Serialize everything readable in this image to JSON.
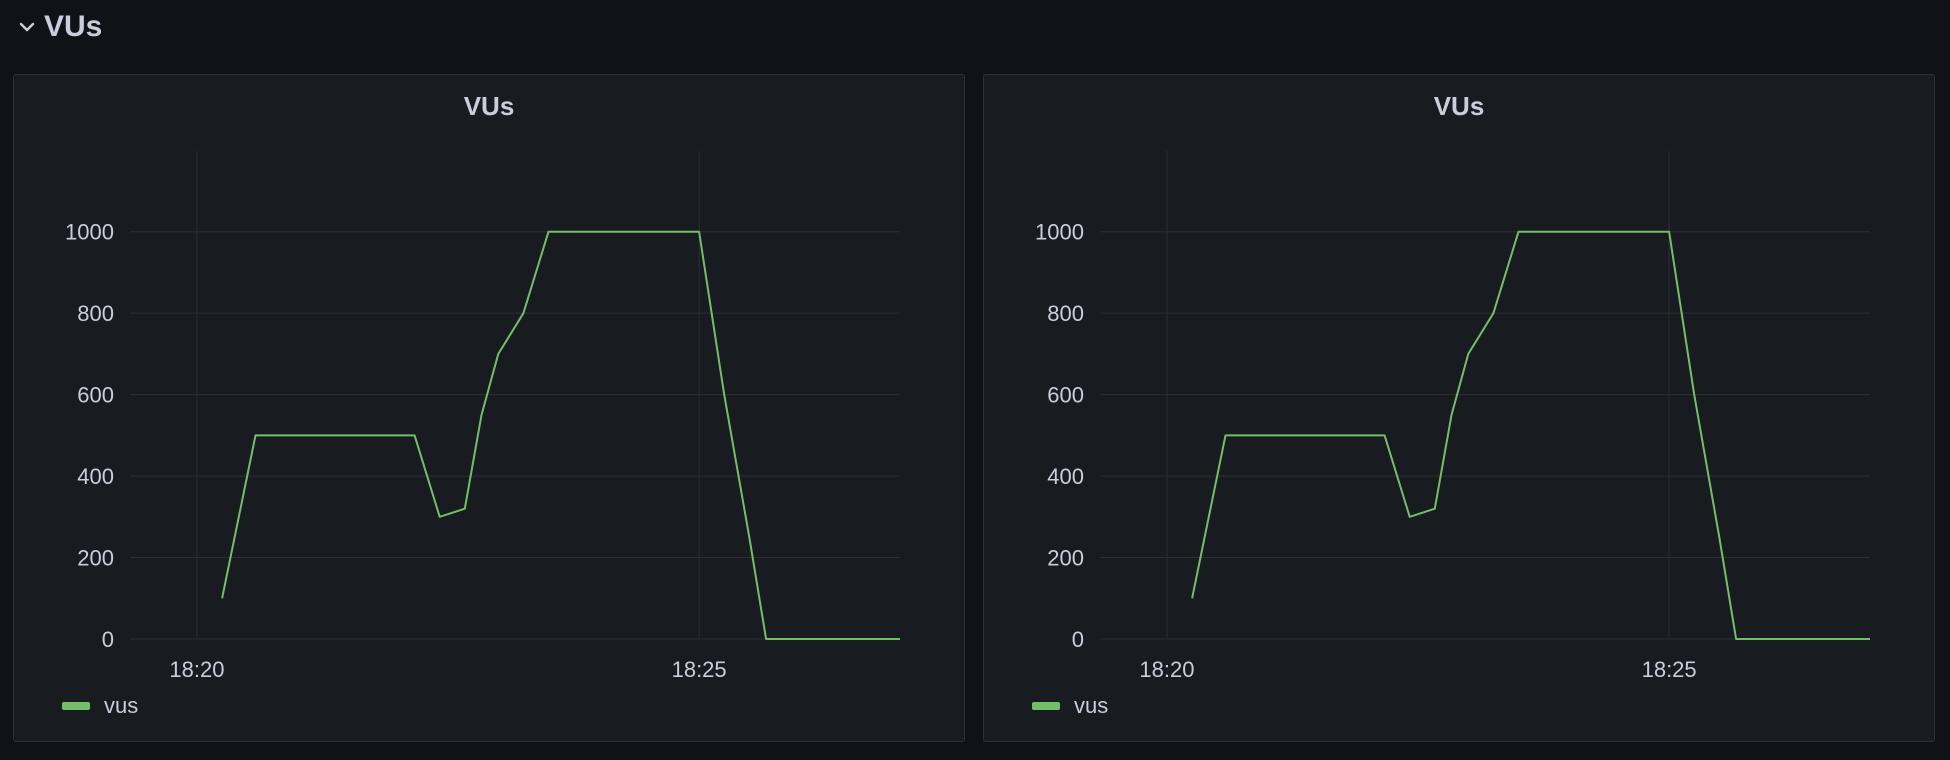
{
  "row": {
    "title": "VUs",
    "icon": "chevron-down-icon"
  },
  "colors": {
    "background": "#111217",
    "panel": "#181b1f",
    "series": "#73bf69",
    "grid": "#2c2f35",
    "text": "#ccccdc"
  },
  "chart_data": [
    {
      "type": "line",
      "title": "VUs",
      "x_ticks": [
        "18:20",
        "18:25"
      ],
      "y_ticks": [
        "0",
        "200",
        "400",
        "600",
        "800",
        "1000"
      ],
      "ylim": [
        0,
        1100
      ],
      "xlim": [
        "18:19:20",
        "18:27:00"
      ],
      "grid": true,
      "legend_position": "bottom-left",
      "series": [
        {
          "name": "vus",
          "color": "#73bf69",
          "x": [
            "18:20:15",
            "18:20:35",
            "18:20:50",
            "18:21:10",
            "18:21:30",
            "18:21:50",
            "18:22:10",
            "18:22:25",
            "18:22:40",
            "18:22:50",
            "18:23:00",
            "18:23:15",
            "18:23:30",
            "18:23:45",
            "18:24:00",
            "18:24:15",
            "18:24:30",
            "18:24:45",
            "18:25:00",
            "18:25:15",
            "18:25:30",
            "18:25:40",
            "18:26:00",
            "18:26:20",
            "18:26:40",
            "18:27:00"
          ],
          "values": [
            100,
            500,
            500,
            500,
            500,
            500,
            500,
            300,
            320,
            550,
            700,
            800,
            1000,
            1000,
            1000,
            1000,
            1000,
            1000,
            1000,
            600,
            250,
            0,
            0,
            0,
            0,
            0
          ]
        }
      ]
    },
    {
      "type": "line",
      "title": "VUs",
      "x_ticks": [
        "18:20",
        "18:25"
      ],
      "y_ticks": [
        "0",
        "200",
        "400",
        "600",
        "800",
        "1000"
      ],
      "ylim": [
        0,
        1100
      ],
      "xlim": [
        "18:19:20",
        "18:27:00"
      ],
      "grid": true,
      "legend_position": "bottom-left",
      "series": [
        {
          "name": "vus",
          "color": "#73bf69",
          "x": [
            "18:20:15",
            "18:20:35",
            "18:20:50",
            "18:21:10",
            "18:21:30",
            "18:21:50",
            "18:22:10",
            "18:22:25",
            "18:22:40",
            "18:22:50",
            "18:23:00",
            "18:23:15",
            "18:23:30",
            "18:23:45",
            "18:24:00",
            "18:24:15",
            "18:24:30",
            "18:24:45",
            "18:25:00",
            "18:25:15",
            "18:25:30",
            "18:25:40",
            "18:26:00",
            "18:26:20",
            "18:26:40",
            "18:27:00"
          ],
          "values": [
            100,
            500,
            500,
            500,
            500,
            500,
            500,
            300,
            320,
            550,
            700,
            800,
            1000,
            1000,
            1000,
            1000,
            1000,
            1000,
            1000,
            600,
            250,
            0,
            0,
            0,
            0,
            0
          ]
        }
      ]
    }
  ]
}
